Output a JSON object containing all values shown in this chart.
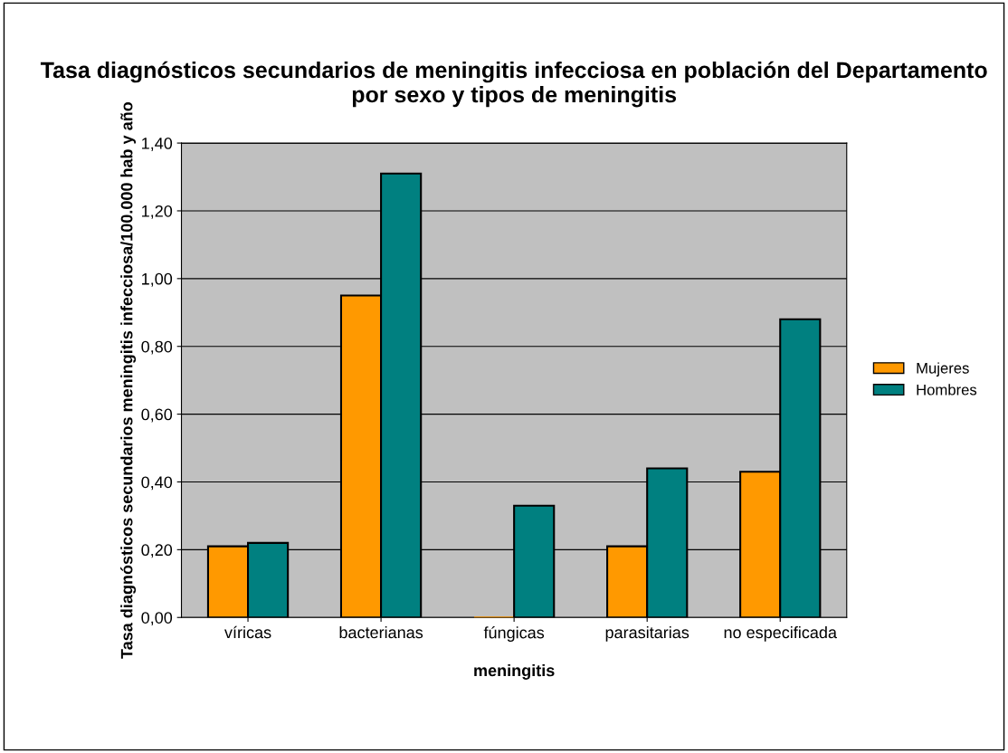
{
  "chart_data": {
    "type": "bar",
    "title": "Tasa diagnósticos secundarios de meningitis infecciosa en población del Departamento por sexo y tipos de meningitis",
    "xlabel": "meningitis",
    "ylabel": "Tasa diagnósticos secundarios meningitis infecciosa/100.000 hab y año",
    "categories": [
      "víricas",
      "bacterianas",
      "fúngicas",
      "parasitarias",
      "no especificada"
    ],
    "series": [
      {
        "name": "Mujeres",
        "color": "#ff9900",
        "values": [
          0.21,
          0.95,
          0,
          0.21,
          0.43
        ]
      },
      {
        "name": "Hombres",
        "color": "#008080",
        "values": [
          0.22,
          1.31,
          0.33,
          0.44,
          0.88
        ]
      }
    ],
    "ylim": [
      0,
      1.4
    ],
    "yticks": [
      {
        "value": 0,
        "label": "0,00"
      },
      {
        "value": 0.2,
        "label": "0,20"
      },
      {
        "value": 0.4,
        "label": "0,40"
      },
      {
        "value": 0.6,
        "label": "0,60"
      },
      {
        "value": 0.8,
        "label": "0,80"
      },
      {
        "value": 1.0,
        "label": "1,00"
      },
      {
        "value": 1.2,
        "label": "1,20"
      },
      {
        "value": 1.4,
        "label": "1,40"
      }
    ],
    "grid": "y",
    "legend": "right"
  }
}
